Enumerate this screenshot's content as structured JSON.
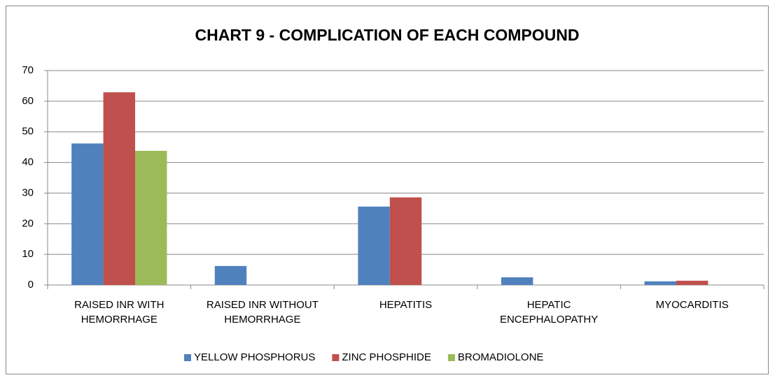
{
  "chart_data": {
    "type": "bar",
    "title": "CHART 9 - COMPLICATION OF EACH COMPOUND",
    "categories": [
      "RAISED INR WITH HEMORRHAGE",
      "RAISED INR WITHOUT HEMORRHAGE",
      "HEPATITIS",
      "HEPATIC ENCEPHALOPATHY",
      "MYOCARDITIS"
    ],
    "series": [
      {
        "name": "YELLOW PHOSPHORUS",
        "color": "#4f81bd",
        "values": [
          46.2,
          6.2,
          25.6,
          2.5,
          1.2
        ]
      },
      {
        "name": "ZINC PHOSPHIDE",
        "color": "#c0504d",
        "values": [
          62.9,
          0,
          28.6,
          0,
          1.4
        ]
      },
      {
        "name": "BROMADIOLONE",
        "color": "#9bbb59",
        "values": [
          43.8,
          0,
          0,
          0,
          0
        ]
      }
    ],
    "ylim": [
      0,
      70
    ],
    "yticks": [
      0,
      10,
      20,
      30,
      40,
      50,
      60,
      70
    ],
    "grid": true,
    "legend": "bottom"
  }
}
